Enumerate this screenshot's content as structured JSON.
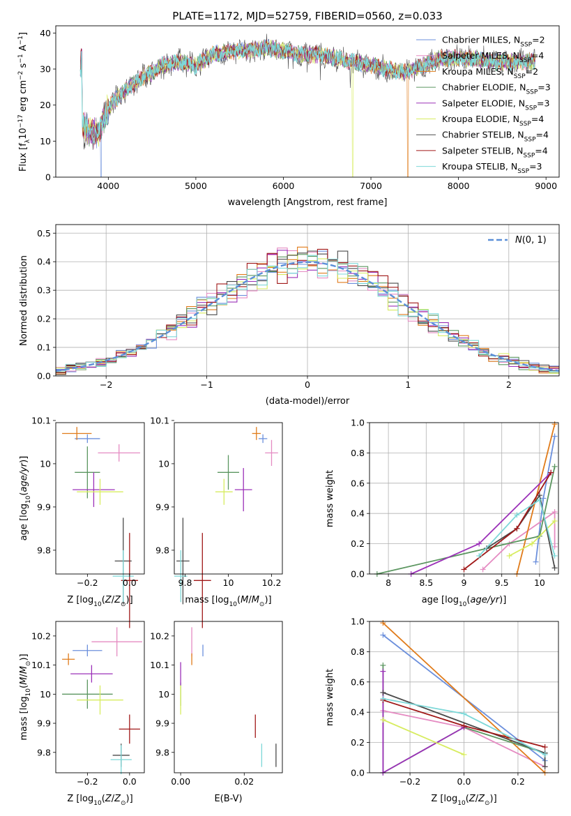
{
  "colors": [
    "#6b8fdc",
    "#e58bc2",
    "#e07b1a",
    "#5b9660",
    "#9b30b8",
    "#d7ec5f",
    "#4a4a4a",
    "#a01818",
    "#7dd8d8"
  ],
  "chart_data": [
    {
      "type": "line",
      "title": "PLATE=1172, MJD=52759, FIBERID=0560, z=0.033",
      "xlabel": "wavelength [Angstrom, rest frame]",
      "ylabel": "Flux [f",
      "xlim": [
        3400,
        9150
      ],
      "ylim": [
        0,
        42
      ],
      "xticks": [
        4000,
        5000,
        6000,
        7000,
        8000,
        9000
      ],
      "yticks": [
        0,
        10,
        20,
        30,
        40
      ],
      "legend_position": "right",
      "series": [
        {
          "base": "Chabrier MILES, N",
          "sub": "SSP",
          "tail": "=2"
        },
        {
          "base": "Salpeter MILES, N",
          "sub": "SSP",
          "tail": "=4"
        },
        {
          "base": "Kroupa MILES, N",
          "sub": "SSP",
          "tail": "=2"
        },
        {
          "base": "Chabrier ELODIE, N",
          "sub": "SSP",
          "tail": "=3"
        },
        {
          "base": "Salpeter ELODIE, N",
          "sub": "SSP",
          "tail": "=3"
        },
        {
          "base": "Kroupa ELODIE, N",
          "sub": "SSP",
          "tail": "=4"
        },
        {
          "base": "Chabrier STELIB, N",
          "sub": "SSP",
          "tail": "=4"
        },
        {
          "base": "Salpeter STELIB, N",
          "sub": "SSP",
          "tail": "=4"
        },
        {
          "base": "Kroupa STELIB, N",
          "sub": "SSP",
          "tail": "=3"
        }
      ],
      "continuum": [
        [
          3700,
          14
        ],
        [
          3800,
          13
        ],
        [
          3900,
          12
        ],
        [
          3950,
          17
        ],
        [
          4000,
          19
        ],
        [
          4100,
          22
        ],
        [
          4200,
          24
        ],
        [
          4300,
          26
        ],
        [
          4400,
          28
        ],
        [
          4500,
          29
        ],
        [
          4600,
          31
        ],
        [
          4800,
          32
        ],
        [
          5000,
          31
        ],
        [
          5200,
          34
        ],
        [
          5400,
          35
        ],
        [
          5600,
          35
        ],
        [
          5800,
          36
        ],
        [
          6000,
          35
        ],
        [
          6200,
          34
        ],
        [
          6400,
          34
        ],
        [
          6600,
          33
        ],
        [
          6800,
          32
        ],
        [
          7000,
          31
        ],
        [
          7200,
          30
        ],
        [
          7400,
          29
        ],
        [
          7600,
          31
        ],
        [
          7800,
          33
        ],
        [
          8000,
          33
        ],
        [
          8200,
          33
        ],
        [
          8400,
          32
        ],
        [
          8600,
          32
        ],
        [
          8800,
          32
        ]
      ],
      "dropouts": [
        {
          "x": 6790,
          "series": 5
        },
        {
          "x": 7420,
          "series": 2
        },
        {
          "x": 3915,
          "series": 0
        }
      ]
    },
    {
      "type": "bar",
      "xlabel": "(data-model)/error",
      "ylabel": "Normed distribution",
      "xlim": [
        -2.5,
        2.5
      ],
      "ylim": [
        0,
        0.53
      ],
      "xticks": [
        -2,
        -1,
        0,
        1,
        2
      ],
      "xtick_labels": [
        "−2",
        "−1",
        "0",
        "1",
        "2"
      ],
      "yticks": [
        0.0,
        0.1,
        0.2,
        0.3,
        0.4,
        0.5
      ],
      "grid": true,
      "legend": "N(0,1)",
      "bin_width": 0.1,
      "x_start": -2.5
    },
    {
      "type": "scatter",
      "xlabel": "Z [log",
      "ylabel": "age  [log",
      "xlim": [
        -0.35,
        0.07
      ],
      "ylim": [
        9.745,
        10.095
      ],
      "xticks": [
        -0.2,
        0.0
      ],
      "xtick_labels": [
        "−0.2",
        "0.0"
      ],
      "yticks": [
        9.8,
        9.9,
        10.0,
        10.1
      ],
      "points": [
        {
          "x": -0.2,
          "y": 10.058,
          "xerr": 0.06,
          "yerr": 0.01,
          "c": 0
        },
        {
          "x": -0.05,
          "y": 10.025,
          "xerr": 0.1,
          "yerr": 0.02,
          "c": 1
        },
        {
          "x": -0.25,
          "y": 10.07,
          "xerr": 0.07,
          "yerr": 0.015,
          "c": 2
        },
        {
          "x": -0.2,
          "y": 9.98,
          "xerr": 0.06,
          "yerr": 0.06,
          "c": 3
        },
        {
          "x": -0.17,
          "y": 9.94,
          "xerr": 0.1,
          "yerr": 0.04,
          "c": 4
        },
        {
          "x": -0.14,
          "y": 9.935,
          "xerr": 0.11,
          "yerr": 0.03,
          "c": 5
        },
        {
          "x": -0.03,
          "y": 9.775,
          "xerr": 0.04,
          "yerr": 0.1,
          "c": 6
        },
        {
          "x": 0.0,
          "y": 9.73,
          "xerr": 0.04,
          "yerr": 0.11,
          "c": 7
        },
        {
          "x": -0.03,
          "y": 9.74,
          "xerr": 0.05,
          "yerr": 0.06,
          "c": 8
        }
      ]
    },
    {
      "type": "scatter",
      "xlabel": "mass [log",
      "ylabel": "",
      "xlim": [
        9.75,
        10.25
      ],
      "ylim": [
        9.745,
        10.095
      ],
      "xticks": [
        9.8,
        10.0,
        10.2
      ],
      "yticks": [
        9.8,
        9.9,
        10.0,
        10.1
      ],
      "points": [
        {
          "x": 10.16,
          "y": 10.058,
          "xerr": 0.02,
          "yerr": 0.01,
          "c": 0
        },
        {
          "x": 10.2,
          "y": 10.025,
          "xerr": 0.03,
          "yerr": 0.03,
          "c": 1
        },
        {
          "x": 10.13,
          "y": 10.07,
          "xerr": 0.02,
          "yerr": 0.015,
          "c": 2
        },
        {
          "x": 10.0,
          "y": 9.98,
          "xerr": 0.05,
          "yerr": 0.04,
          "c": 3
        },
        {
          "x": 10.07,
          "y": 9.94,
          "xerr": 0.04,
          "yerr": 0.05,
          "c": 4
        },
        {
          "x": 9.98,
          "y": 9.935,
          "xerr": 0.04,
          "yerr": 0.03,
          "c": 5
        },
        {
          "x": 9.79,
          "y": 9.775,
          "xerr": 0.03,
          "yerr": 0.1,
          "c": 6
        },
        {
          "x": 9.88,
          "y": 9.73,
          "xerr": 0.04,
          "yerr": 0.11,
          "c": 7
        },
        {
          "x": 9.78,
          "y": 9.74,
          "xerr": 0.03,
          "yerr": 0.06,
          "c": 8
        }
      ]
    },
    {
      "type": "line",
      "xlabel": "age  [log",
      "ylabel": "mass weight",
      "xlim": [
        7.75,
        10.25
      ],
      "ylim": [
        0,
        1
      ],
      "xticks": [
        8.0,
        8.5,
        9.0,
        9.5,
        10.0
      ],
      "yticks": [
        0.0,
        0.2,
        0.4,
        0.6,
        0.8,
        1.0
      ],
      "grid": true,
      "series": [
        {
          "c": 0,
          "x": [
            9.95,
            10.05,
            10.2
          ],
          "y": [
            0.08,
            0.5,
            0.91
          ]
        },
        {
          "c": 1,
          "x": [
            9.25,
            9.6,
            10.2,
            10.2
          ],
          "y": [
            0.03,
            0.2,
            0.41,
            0.18
          ]
        },
        {
          "c": 2,
          "x": [
            9.7,
            10.2
          ],
          "y": [
            0.0,
            0.99
          ]
        },
        {
          "c": 3,
          "x": [
            7.85,
            10.0,
            10.2
          ],
          "y": [
            0.0,
            0.25,
            0.71
          ]
        },
        {
          "c": 4,
          "x": [
            8.3,
            9.2,
            10.15
          ],
          "y": [
            0.0,
            0.2,
            0.67
          ]
        },
        {
          "c": 5,
          "x": [
            9.6,
            9.9,
            10.2
          ],
          "y": [
            0.12,
            0.2,
            0.35
          ]
        },
        {
          "c": 6,
          "x": [
            9.3,
            9.7,
            10.0,
            10.2
          ],
          "y": [
            0.17,
            0.3,
            0.52,
            0.04
          ]
        },
        {
          "c": 7,
          "x": [
            9.0,
            9.7,
            10.15
          ],
          "y": [
            0.03,
            0.3,
            0.67
          ]
        },
        {
          "c": 8,
          "x": [
            9.2,
            9.7,
            10.0,
            10.2
          ],
          "y": [
            0.12,
            0.39,
            0.49,
            0.12
          ]
        }
      ]
    },
    {
      "type": "scatter",
      "xlabel": "Z [log",
      "ylabel": "mass [log",
      "xlim": [
        -0.35,
        0.07
      ],
      "ylim": [
        9.73,
        10.25
      ],
      "xticks": [
        -0.2,
        0.0
      ],
      "xtick_labels": [
        "−0.2",
        "0.0"
      ],
      "yticks": [
        9.8,
        9.9,
        10.0,
        10.1,
        10.2
      ],
      "points": [
        {
          "x": -0.2,
          "y": 10.15,
          "xerr": 0.07,
          "yerr": 0.02,
          "c": 0
        },
        {
          "x": -0.06,
          "y": 10.18,
          "xerr": 0.12,
          "yerr": 0.05,
          "c": 1
        },
        {
          "x": -0.29,
          "y": 10.12,
          "xerr": 0.03,
          "yerr": 0.02,
          "c": 2
        },
        {
          "x": -0.2,
          "y": 10.0,
          "xerr": 0.12,
          "yerr": 0.05,
          "c": 3
        },
        {
          "x": -0.18,
          "y": 10.07,
          "xerr": 0.1,
          "yerr": 0.03,
          "c": 4
        },
        {
          "x": -0.14,
          "y": 9.98,
          "xerr": 0.11,
          "yerr": 0.05,
          "c": 5
        },
        {
          "x": -0.04,
          "y": 9.79,
          "xerr": 0.04,
          "yerr": 0.04,
          "c": 6
        },
        {
          "x": 0.0,
          "y": 9.88,
          "xerr": 0.05,
          "yerr": 0.05,
          "c": 7
        },
        {
          "x": -0.04,
          "y": 9.775,
          "xerr": 0.05,
          "yerr": 0.05,
          "c": 8
        }
      ]
    },
    {
      "type": "scatter",
      "xlabel": "E(B-V)",
      "ylabel": "",
      "xlim": [
        -0.002,
        0.032
      ],
      "ylim": [
        9.73,
        10.25
      ],
      "xticks": [
        0.0,
        0.02
      ],
      "xtick_labels": [
        "0.00",
        "0.02"
      ],
      "yticks": [
        9.8,
        9.9,
        10.0,
        10.1,
        10.2
      ],
      "points": [
        {
          "x": 0.007,
          "y": 10.15,
          "xerr": 0,
          "yerr": 0.02,
          "c": 0
        },
        {
          "x": 0.0035,
          "y": 10.18,
          "xerr": 0,
          "yerr": 0.05,
          "c": 1
        },
        {
          "x": 0.0035,
          "y": 10.12,
          "xerr": 0,
          "yerr": 0.02,
          "c": 2
        },
        {
          "x": 0.0,
          "y": 10.0,
          "xerr": 0,
          "yerr": 0.04,
          "c": 3
        },
        {
          "x": 0.0,
          "y": 10.07,
          "xerr": 0,
          "yerr": 0.04,
          "c": 4
        },
        {
          "x": 0.0,
          "y": 9.98,
          "xerr": 0,
          "yerr": 0.05,
          "c": 5
        },
        {
          "x": 0.03,
          "y": 9.79,
          "xerr": 0,
          "yerr": 0.04,
          "c": 6
        },
        {
          "x": 0.0235,
          "y": 9.89,
          "xerr": 0,
          "yerr": 0.04,
          "c": 7
        },
        {
          "x": 0.0255,
          "y": 9.79,
          "xerr": 0,
          "yerr": 0.04,
          "c": 8
        }
      ]
    },
    {
      "type": "line",
      "xlabel": "Z [log",
      "ylabel": "mass weight",
      "xlim": [
        -0.35,
        0.35
      ],
      "ylim": [
        0,
        1
      ],
      "xticks": [
        -0.2,
        0.0,
        0.2
      ],
      "xtick_labels": [
        "−0.2",
        "0.0",
        "0.2"
      ],
      "yticks": [
        0.0,
        0.2,
        0.4,
        0.6,
        0.8,
        1.0
      ],
      "grid": true,
      "series": [
        {
          "c": 0,
          "x": [
            -0.3,
            0.3
          ],
          "y": [
            0.91,
            0.08
          ]
        },
        {
          "c": 1,
          "x": [
            -0.3,
            0.0,
            0.3
          ],
          "y": [
            0.41,
            0.3,
            0.04
          ]
        },
        {
          "c": 2,
          "x": [
            -0.3,
            0.3
          ],
          "y": [
            0.99,
            0.0
          ]
        },
        {
          "c": 3,
          "x": [
            -0.3,
            -0.3,
            0.0,
            0.3
          ],
          "y": [
            0.71,
            0.0,
            0.3,
            0.13
          ]
        },
        {
          "c": 4,
          "x": [
            -0.3,
            -0.3,
            0.0
          ],
          "y": [
            0.67,
            0.0,
            0.3
          ]
        },
        {
          "c": 5,
          "x": [
            -0.3,
            0.0
          ],
          "y": [
            0.35,
            0.12
          ]
        },
        {
          "c": 6,
          "x": [
            -0.3,
            0.3,
            0.3
          ],
          "y": [
            0.53,
            0.13,
            0.04
          ]
        },
        {
          "c": 7,
          "x": [
            -0.3,
            0.0,
            0.3
          ],
          "y": [
            0.48,
            0.31,
            0.17
          ]
        },
        {
          "c": 8,
          "x": [
            -0.3,
            0.0,
            0.3
          ],
          "y": [
            0.49,
            0.39,
            0.12
          ]
        }
      ]
    }
  ]
}
